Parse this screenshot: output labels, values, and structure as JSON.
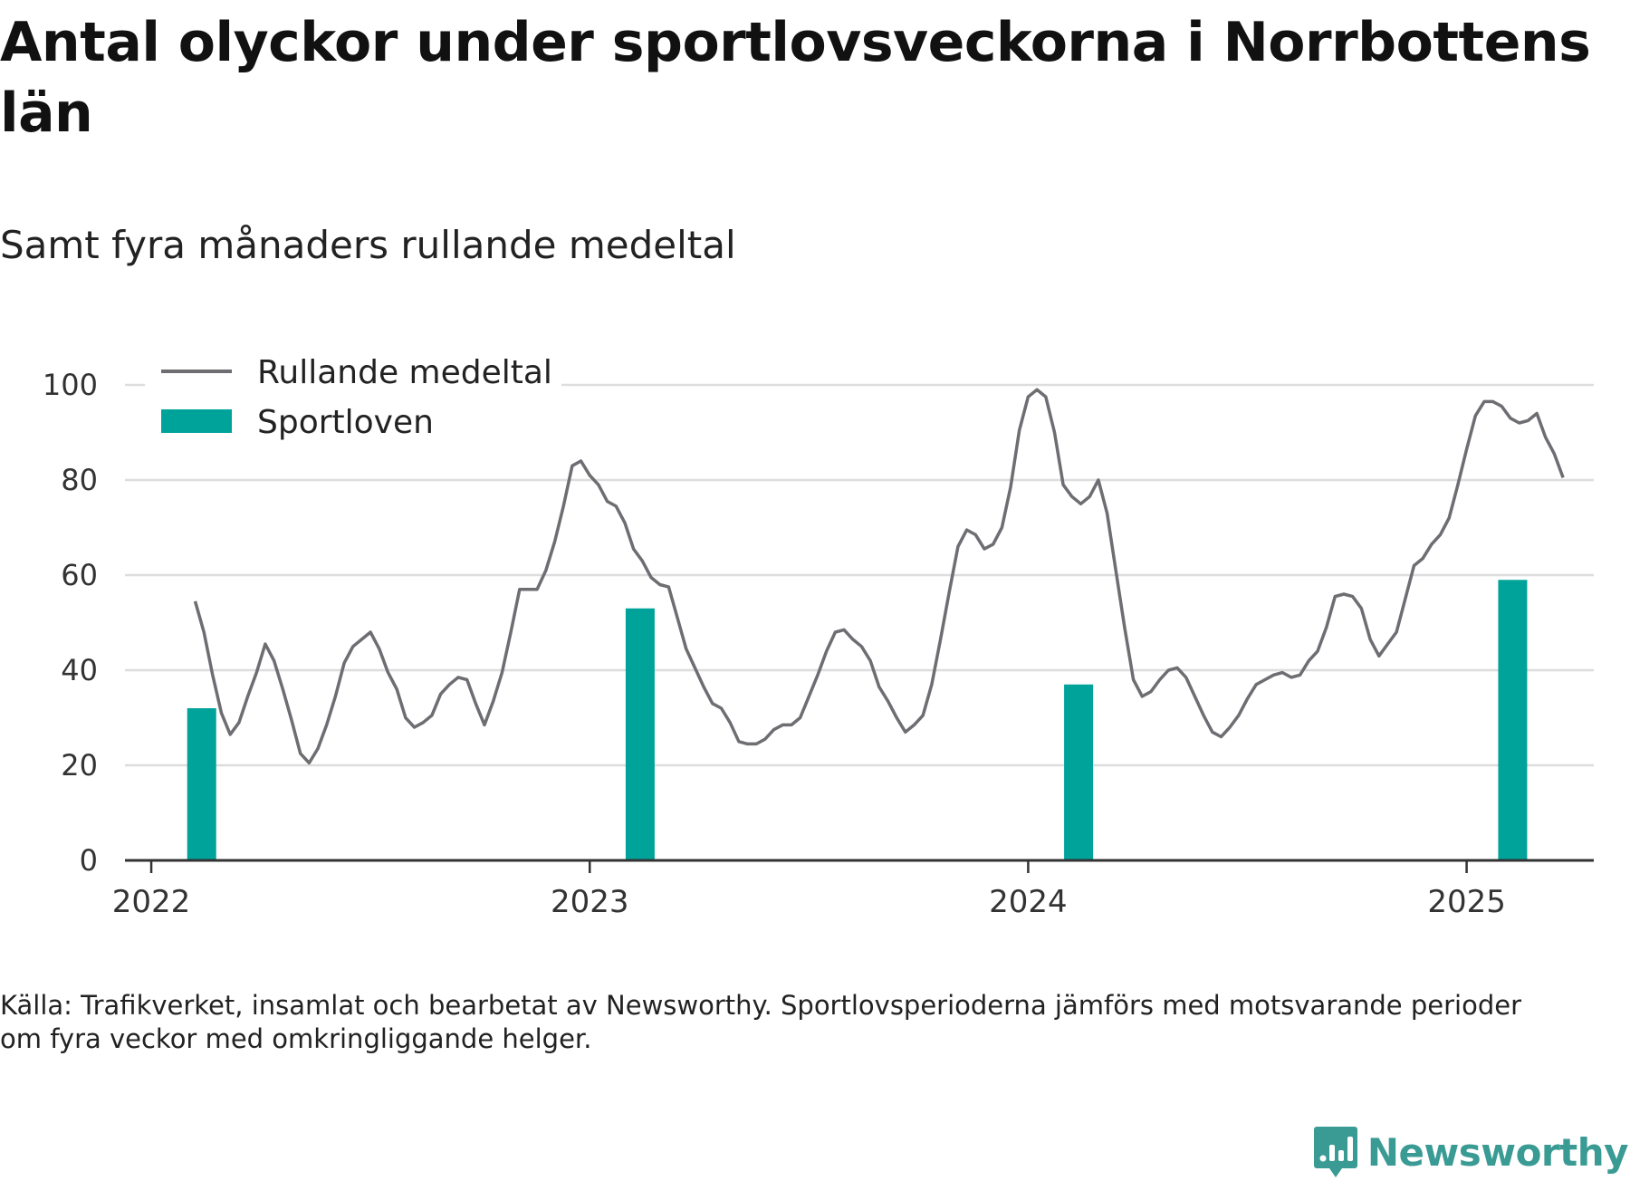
{
  "title": "Antal olyckor under sportlovsveckorna i Norrbottens län",
  "subtitle": "Samt fyra månaders rullande medeltal",
  "source": "Källa: Trafikverket, insamlat och bearbetat av Newsworthy. Sportlovsperioderna jämförs med motsvarande perioder om fyra veckor med omkringliggande helger.",
  "brand": {
    "name": "Newsworthy",
    "icon": "newsworthy-logo-icon",
    "color": "#3a9b94"
  },
  "chart_data": {
    "type": "bar+line",
    "x_ticks": [
      2022,
      2023,
      2024,
      2025
    ],
    "xlim": [
      2021.94,
      2025.29
    ],
    "ylim": [
      0,
      100
    ],
    "y_ticks": [
      0,
      20,
      40,
      60,
      80,
      100
    ],
    "grid": true,
    "legend": {
      "placement": "top-left"
    },
    "colors": {
      "line": "#6d6d72",
      "bars": "#00a39a",
      "grid": "#dddddd",
      "axis": "#333333"
    },
    "series": [
      {
        "name": "Rullande medeltal",
        "type": "line",
        "points": [
          [
            2022.1,
            54.5
          ],
          [
            2022.12,
            48
          ],
          [
            2022.14,
            39
          ],
          [
            2022.16,
            31
          ],
          [
            2022.18,
            26.5
          ],
          [
            2022.2,
            29
          ],
          [
            2022.22,
            34.5
          ],
          [
            2022.24,
            39.5
          ],
          [
            2022.26,
            45.5
          ],
          [
            2022.28,
            42
          ],
          [
            2022.3,
            36
          ],
          [
            2022.32,
            29.5
          ],
          [
            2022.34,
            22.5
          ],
          [
            2022.36,
            20.5
          ],
          [
            2022.38,
            23.5
          ],
          [
            2022.4,
            28.5
          ],
          [
            2022.42,
            34.5
          ],
          [
            2022.44,
            41.5
          ],
          [
            2022.46,
            45
          ],
          [
            2022.48,
            46.5
          ],
          [
            2022.5,
            48
          ],
          [
            2022.52,
            44.5
          ],
          [
            2022.54,
            39.5
          ],
          [
            2022.56,
            36
          ],
          [
            2022.58,
            30
          ],
          [
            2022.6,
            28
          ],
          [
            2022.62,
            29
          ],
          [
            2022.64,
            30.5
          ],
          [
            2022.66,
            35
          ],
          [
            2022.68,
            37
          ],
          [
            2022.7,
            38.5
          ],
          [
            2022.72,
            38
          ],
          [
            2022.74,
            33
          ],
          [
            2022.76,
            28.5
          ],
          [
            2022.78,
            33.5
          ],
          [
            2022.8,
            39.5
          ],
          [
            2022.82,
            48
          ],
          [
            2022.84,
            57
          ],
          [
            2022.86,
            57
          ],
          [
            2022.88,
            57
          ],
          [
            2022.9,
            61
          ],
          [
            2022.92,
            67
          ],
          [
            2022.94,
            74.5
          ],
          [
            2022.96,
            83
          ],
          [
            2022.98,
            84
          ],
          [
            2023.0,
            81
          ],
          [
            2023.02,
            79
          ],
          [
            2023.04,
            75.5
          ],
          [
            2023.06,
            74.5
          ],
          [
            2023.08,
            71
          ],
          [
            2023.1,
            65.5
          ],
          [
            2023.12,
            63
          ],
          [
            2023.14,
            59.5
          ],
          [
            2023.16,
            58
          ],
          [
            2023.18,
            57.5
          ],
          [
            2023.2,
            51
          ],
          [
            2023.22,
            44.5
          ],
          [
            2023.24,
            40.5
          ],
          [
            2023.26,
            36.5
          ],
          [
            2023.28,
            33
          ],
          [
            2023.3,
            32
          ],
          [
            2023.32,
            29
          ],
          [
            2023.34,
            25
          ],
          [
            2023.36,
            24.5
          ],
          [
            2023.38,
            24.5
          ],
          [
            2023.4,
            25.5
          ],
          [
            2023.42,
            27.5
          ],
          [
            2023.44,
            28.5
          ],
          [
            2023.46,
            28.5
          ],
          [
            2023.48,
            30
          ],
          [
            2023.5,
            34.5
          ],
          [
            2023.52,
            39
          ],
          [
            2023.54,
            44
          ],
          [
            2023.56,
            48
          ],
          [
            2023.58,
            48.5
          ],
          [
            2023.6,
            46.5
          ],
          [
            2023.62,
            45
          ],
          [
            2023.64,
            42
          ],
          [
            2023.66,
            36.5
          ],
          [
            2023.68,
            33.5
          ],
          [
            2023.7,
            30
          ],
          [
            2023.72,
            27
          ],
          [
            2023.74,
            28.5
          ],
          [
            2023.76,
            30.5
          ],
          [
            2023.78,
            37
          ],
          [
            2023.8,
            46.5
          ],
          [
            2023.82,
            56.5
          ],
          [
            2023.84,
            66
          ],
          [
            2023.86,
            69.5
          ],
          [
            2023.88,
            68.5
          ],
          [
            2023.9,
            65.5
          ],
          [
            2023.92,
            66.5
          ],
          [
            2023.94,
            70
          ],
          [
            2023.96,
            78.5
          ],
          [
            2023.98,
            90.5
          ],
          [
            2024.0,
            97.5
          ],
          [
            2024.02,
            99
          ],
          [
            2024.04,
            97.5
          ],
          [
            2024.06,
            90
          ],
          [
            2024.08,
            79
          ],
          [
            2024.1,
            76.5
          ],
          [
            2024.12,
            75
          ],
          [
            2024.14,
            76.5
          ],
          [
            2024.16,
            80
          ],
          [
            2024.18,
            73
          ],
          [
            2024.2,
            61
          ],
          [
            2024.22,
            49
          ],
          [
            2024.24,
            38
          ],
          [
            2024.26,
            34.5
          ],
          [
            2024.28,
            35.5
          ],
          [
            2024.3,
            38
          ],
          [
            2024.32,
            40
          ],
          [
            2024.34,
            40.5
          ],
          [
            2024.36,
            38.5
          ],
          [
            2024.38,
            34.5
          ],
          [
            2024.4,
            30.5
          ],
          [
            2024.42,
            27
          ],
          [
            2024.44,
            26
          ],
          [
            2024.46,
            28
          ],
          [
            2024.48,
            30.5
          ],
          [
            2024.5,
            34
          ],
          [
            2024.52,
            37
          ],
          [
            2024.54,
            38
          ],
          [
            2024.56,
            39
          ],
          [
            2024.58,
            39.5
          ],
          [
            2024.6,
            38.5
          ],
          [
            2024.62,
            39
          ],
          [
            2024.64,
            42
          ],
          [
            2024.66,
            44
          ],
          [
            2024.68,
            49
          ],
          [
            2024.7,
            55.5
          ],
          [
            2024.72,
            56
          ],
          [
            2024.74,
            55.5
          ],
          [
            2024.76,
            53
          ],
          [
            2024.78,
            46.5
          ],
          [
            2024.8,
            43
          ],
          [
            2024.82,
            45.5
          ],
          [
            2024.84,
            48
          ],
          [
            2024.86,
            55
          ],
          [
            2024.88,
            62
          ],
          [
            2024.9,
            63.5
          ],
          [
            2024.92,
            66.5
          ],
          [
            2024.94,
            68.5
          ],
          [
            2024.96,
            72
          ],
          [
            2024.98,
            79
          ],
          [
            2025.0,
            86.5
          ],
          [
            2025.02,
            93.5
          ],
          [
            2025.04,
            96.5
          ],
          [
            2025.06,
            96.5
          ],
          [
            2025.08,
            95.5
          ],
          [
            2025.1,
            93
          ],
          [
            2025.12,
            92
          ],
          [
            2025.14,
            92.5
          ],
          [
            2025.16,
            94
          ],
          [
            2025.18,
            89
          ],
          [
            2025.2,
            85.5
          ],
          [
            2025.22,
            80.5
          ]
        ]
      },
      {
        "name": "Sportloven",
        "type": "bar",
        "x": [
          2022.115,
          2023.115,
          2024.115,
          2025.105
        ],
        "values": [
          32,
          53,
          37,
          59
        ]
      }
    ]
  }
}
